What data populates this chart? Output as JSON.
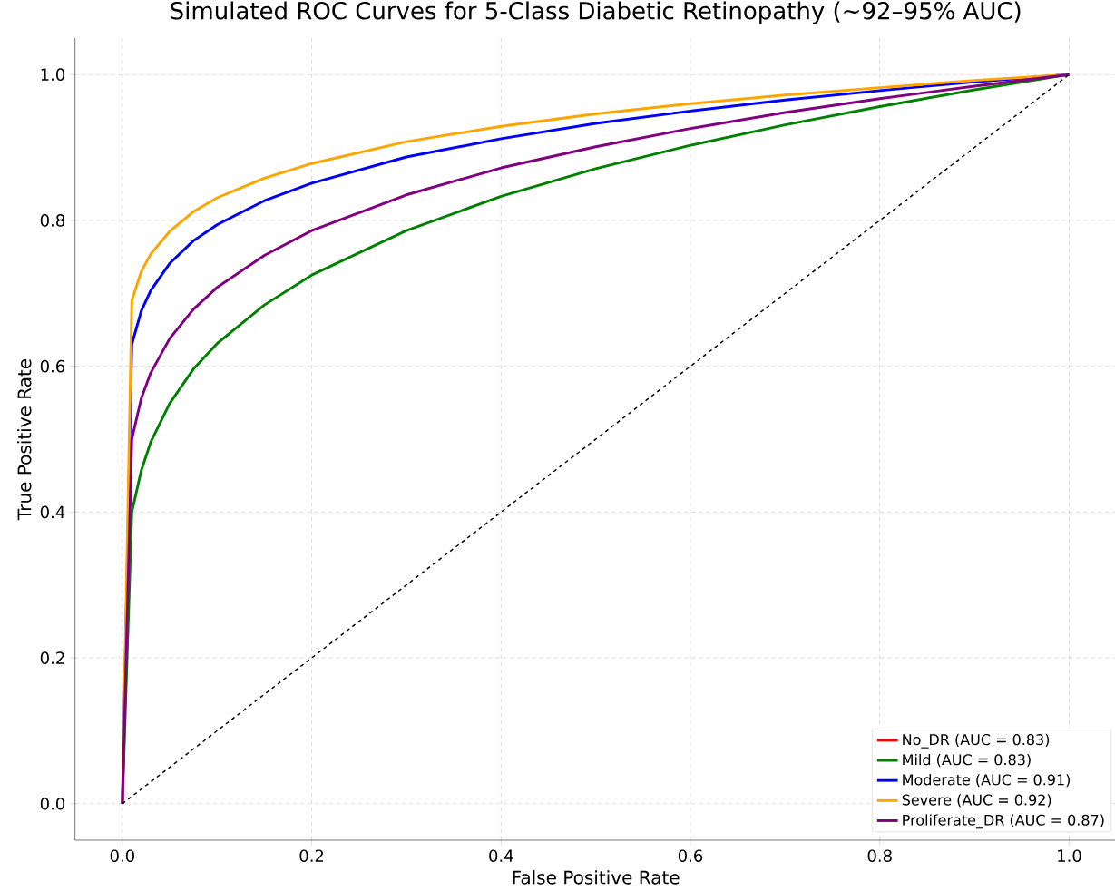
{
  "chart_data": {
    "type": "line",
    "title": "Simulated ROC Curves for 5-Class Diabetic Retinopathy (~92–95% AUC)",
    "xlabel": "False Positive Rate",
    "ylabel": "True Positive Rate",
    "x": [
      0,
      0.01,
      0.02,
      0.03,
      0.05,
      0.075,
      0.1,
      0.15,
      0.2,
      0.3,
      0.4,
      0.5,
      0.6,
      0.7,
      0.8,
      0.9,
      1.0
    ],
    "series": [
      {
        "name": "No_DR (AUC = 0.83)",
        "color": "#ff0000",
        "values": [
          null,
          null,
          null,
          null,
          null,
          null,
          null,
          null,
          null,
          null,
          null,
          null,
          null,
          null,
          null,
          null,
          null
        ]
      },
      {
        "name": "Mild (AUC = 0.83)",
        "color": "#008000",
        "values": [
          0,
          0.4,
          0.457,
          0.496,
          0.549,
          0.596,
          0.631,
          0.684,
          0.725,
          0.786,
          0.833,
          0.871,
          0.903,
          0.931,
          0.956,
          0.979,
          1.0
        ]
      },
      {
        "name": "Moderate (AUC = 0.91)",
        "color": "#0000ff",
        "values": [
          0,
          0.63,
          0.676,
          0.704,
          0.741,
          0.772,
          0.794,
          0.827,
          0.851,
          0.887,
          0.912,
          0.933,
          0.95,
          0.965,
          0.978,
          0.99,
          1.0
        ]
      },
      {
        "name": "Severe (AUC = 0.92)",
        "color": "#ffa500",
        "values": [
          0,
          0.69,
          0.73,
          0.754,
          0.785,
          0.812,
          0.831,
          0.858,
          0.878,
          0.908,
          0.929,
          0.946,
          0.96,
          0.972,
          0.982,
          0.992,
          1.0
        ]
      },
      {
        "name": "Proliferate_DR (AUC = 0.87)",
        "color": "#800080",
        "values": [
          0,
          0.5,
          0.556,
          0.591,
          0.638,
          0.678,
          0.708,
          0.752,
          0.786,
          0.835,
          0.872,
          0.901,
          0.926,
          0.948,
          0.967,
          0.984,
          1.0
        ]
      },
      {
        "type": "line",
        "color": "#000000",
        "line_style": "dashed",
        "x": [
          0,
          1
        ],
        "values": [
          0,
          1
        ]
      }
    ],
    "xlim": [
      -0.05,
      1.05
    ],
    "ylim": [
      -0.05,
      1.05
    ],
    "xticks": [
      {
        "value": 0,
        "label": "0.0"
      },
      {
        "value": 0.2,
        "label": "0.2"
      },
      {
        "value": 0.4,
        "label": "0.4"
      },
      {
        "value": 0.6,
        "label": "0.6"
      },
      {
        "value": 0.8,
        "label": "0.8"
      },
      {
        "value": 1.0,
        "label": "1.0"
      }
    ],
    "yticks": [
      {
        "value": 0,
        "label": "0.0"
      },
      {
        "value": 0.2,
        "label": "0.2"
      },
      {
        "value": 0.4,
        "label": "0.4"
      },
      {
        "value": 0.6,
        "label": "0.6"
      },
      {
        "value": 0.8,
        "label": "0.8"
      },
      {
        "value": 1.0,
        "label": "1.0"
      }
    ],
    "grid": true,
    "legend": "bottom right",
    "marker": "none",
    "line_style": "solid"
  }
}
